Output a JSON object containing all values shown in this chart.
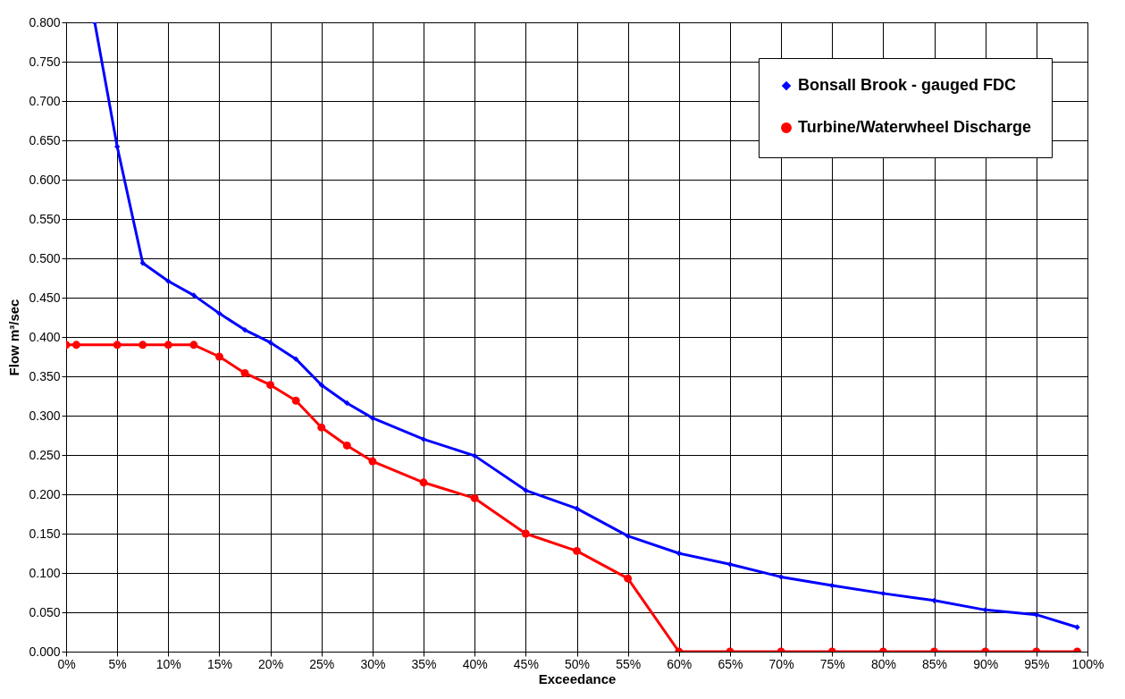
{
  "chart_data": {
    "type": "line",
    "xlabel": "Exceedance",
    "ylabel": "Flow m³/sec",
    "grid": true,
    "legend": "top right",
    "line_style": "solid",
    "xlim": [
      0,
      100
    ],
    "ylim": [
      0,
      0.8
    ],
    "xticks": [
      {
        "value": 0,
        "label": "0%"
      },
      {
        "value": 5,
        "label": "5%"
      },
      {
        "value": 10,
        "label": "10%"
      },
      {
        "value": 15,
        "label": "15%"
      },
      {
        "value": 20,
        "label": "20%"
      },
      {
        "value": 25,
        "label": "25%"
      },
      {
        "value": 30,
        "label": "30%"
      },
      {
        "value": 35,
        "label": "35%"
      },
      {
        "value": 40,
        "label": "40%"
      },
      {
        "value": 45,
        "label": "45%"
      },
      {
        "value": 50,
        "label": "50%"
      },
      {
        "value": 55,
        "label": "55%"
      },
      {
        "value": 60,
        "label": "60%"
      },
      {
        "value": 65,
        "label": "65%"
      },
      {
        "value": 70,
        "label": "70%"
      },
      {
        "value": 75,
        "label": "75%"
      },
      {
        "value": 80,
        "label": "80%"
      },
      {
        "value": 85,
        "label": "85%"
      },
      {
        "value": 90,
        "label": "90%"
      },
      {
        "value": 95,
        "label": "95%"
      },
      {
        "value": 100,
        "label": "100%"
      }
    ],
    "yticks": [
      {
        "value": 0,
        "label": "0.000"
      },
      {
        "value": 0.05,
        "label": "0.050"
      },
      {
        "value": 0.1,
        "label": "0.100"
      },
      {
        "value": 0.15,
        "label": "0.150"
      },
      {
        "value": 0.2,
        "label": "0.200"
      },
      {
        "value": 0.25,
        "label": "0.250"
      },
      {
        "value": 0.3,
        "label": "0.300"
      },
      {
        "value": 0.35,
        "label": "0.350"
      },
      {
        "value": 0.4,
        "label": "0.400"
      },
      {
        "value": 0.45,
        "label": "0.450"
      },
      {
        "value": 0.5,
        "label": "0.500"
      },
      {
        "value": 0.55,
        "label": "0.550"
      },
      {
        "value": 0.6,
        "label": "0.600"
      },
      {
        "value": 0.65,
        "label": "0.650"
      },
      {
        "value": 0.7,
        "label": "0.700"
      },
      {
        "value": 0.75,
        "label": "0.750"
      },
      {
        "value": 0.8,
        "label": "0.800"
      }
    ],
    "series": [
      {
        "name": "Bonsall Brook - gauged FDC",
        "color": "#0000ff",
        "marker": "diamond",
        "x": [
          2.8,
          5,
          7.5,
          10,
          12.5,
          15,
          17.5,
          20,
          22.5,
          25,
          27.5,
          30,
          35,
          40,
          45,
          50,
          55,
          60,
          65,
          70,
          75,
          80,
          85,
          90,
          95,
          99
        ],
        "values": [
          0.8,
          0.642,
          0.494,
          0.471,
          0.453,
          0.43,
          0.409,
          0.393,
          0.372,
          0.339,
          0.316,
          0.297,
          0.27,
          0.249,
          0.205,
          0.182,
          0.147,
          0.125,
          0.111,
          0.095,
          0.084,
          0.074,
          0.065,
          0.053,
          0.047,
          0.031
        ]
      },
      {
        "name": "Turbine/Waterwheel Discharge",
        "color": "#ff0000",
        "marker": "circle",
        "x": [
          0,
          1,
          5,
          7.5,
          10,
          12.5,
          15,
          17.5,
          20,
          22.5,
          25,
          27.5,
          30,
          35,
          40,
          45,
          50,
          55,
          60,
          65,
          70,
          75,
          80,
          85,
          90,
          95,
          99
        ],
        "values": [
          0.39,
          0.39,
          0.39,
          0.39,
          0.39,
          0.39,
          0.375,
          0.354,
          0.339,
          0.319,
          0.285,
          0.262,
          0.242,
          0.215,
          0.195,
          0.15,
          0.128,
          0.093,
          0,
          0,
          0,
          0,
          0,
          0,
          0,
          0,
          0
        ]
      }
    ]
  }
}
